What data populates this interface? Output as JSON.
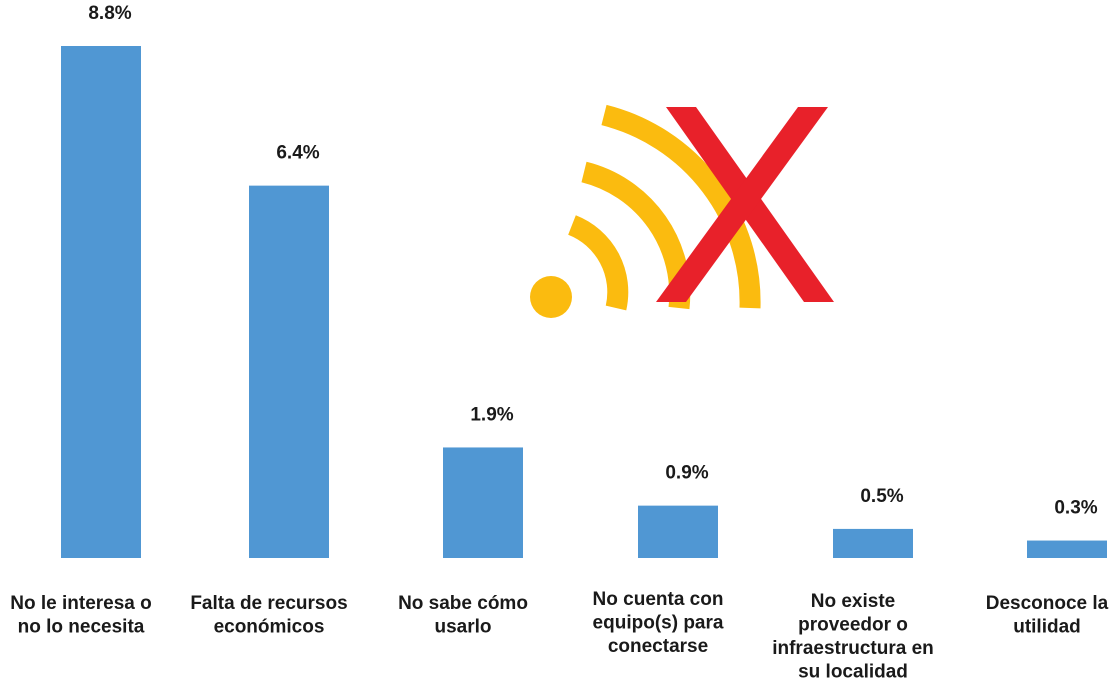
{
  "chart_data": {
    "type": "bar",
    "categories": [
      [
        "No le interesa o",
        "no lo necesita"
      ],
      [
        "Falta de recursos",
        "económicos"
      ],
      [
        "No sabe cómo",
        "usarlo"
      ],
      [
        "No cuenta con",
        "equipo(s) para",
        "conectarse"
      ],
      [
        "No existe",
        "proveedor o",
        "infraestructura en",
        "su localidad"
      ],
      [
        "Desconoce la",
        "utilidad"
      ]
    ],
    "values": [
      8.8,
      6.4,
      1.9,
      0.9,
      0.5,
      0.3
    ],
    "data_labels": [
      "8.8%",
      "6.4%",
      "1.9%",
      "0.9%",
      "0.5%",
      "0.3%"
    ],
    "bar_color": "#5097d3",
    "title": "",
    "xlabel": "",
    "ylabel": "",
    "ylim": [
      0,
      8.8
    ],
    "grid": false,
    "legend": "none"
  },
  "decoration": {
    "icon": "wifi-no-signal-icon",
    "wifi_color": "#fbbb0f",
    "cross_color": "#e8212a"
  }
}
